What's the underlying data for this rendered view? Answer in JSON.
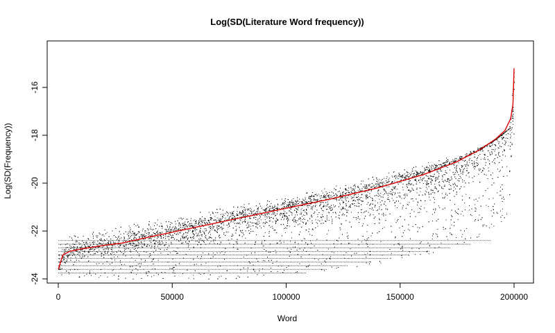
{
  "chart_data": {
    "type": "scatter",
    "title": "Log(SD(Literature Word frequency))",
    "xlabel": "Word",
    "ylabel": "Log(SD(Frequency))",
    "xlim": [
      0,
      200000
    ],
    "ylim": [
      -24,
      -15
    ],
    "x_ticks": [
      0,
      50000,
      100000,
      150000,
      200000
    ],
    "x_tick_labels": [
      "0",
      "50000",
      "100000",
      "150000",
      "200000"
    ],
    "y_ticks": [
      -24,
      -22,
      -20,
      -18,
      -16
    ],
    "y_tick_labels": [
      "-24",
      "-22",
      "-20",
      "-18",
      "-16"
    ],
    "grid": false,
    "point_color": "#000000",
    "series": [
      {
        "color": "#e00000",
        "style": "line",
        "x": [
          0,
          2000,
          5000,
          10000,
          20000,
          28000,
          40000,
          60000,
          80000,
          100000,
          120000,
          140000,
          160000,
          175000,
          185000,
          192000,
          196000,
          198500,
          199500,
          200000
        ],
        "y": [
          -23.6,
          -23.0,
          -22.85,
          -22.75,
          -22.6,
          -22.5,
          -22.25,
          -21.85,
          -21.45,
          -21.05,
          -20.65,
          -20.2,
          -19.65,
          -19.1,
          -18.6,
          -18.15,
          -17.8,
          -17.3,
          -16.7,
          -15.2
        ]
      }
    ],
    "scatter_envelope": {
      "x": [
        0,
        25000,
        50000,
        75000,
        100000,
        125000,
        150000,
        175000,
        190000,
        198000,
        200000
      ],
      "upper": [
        -22.3,
        -21.85,
        -21.4,
        -20.95,
        -20.5,
        -20.0,
        -19.4,
        -18.8,
        -18.3,
        -17.7,
        -15.0
      ],
      "lower": [
        -24.0,
        -24.0,
        -24.0,
        -24.0,
        -23.8,
        -23.6,
        -23.3,
        -22.6,
        -22.0,
        -21.3,
        -18.0
      ]
    }
  }
}
